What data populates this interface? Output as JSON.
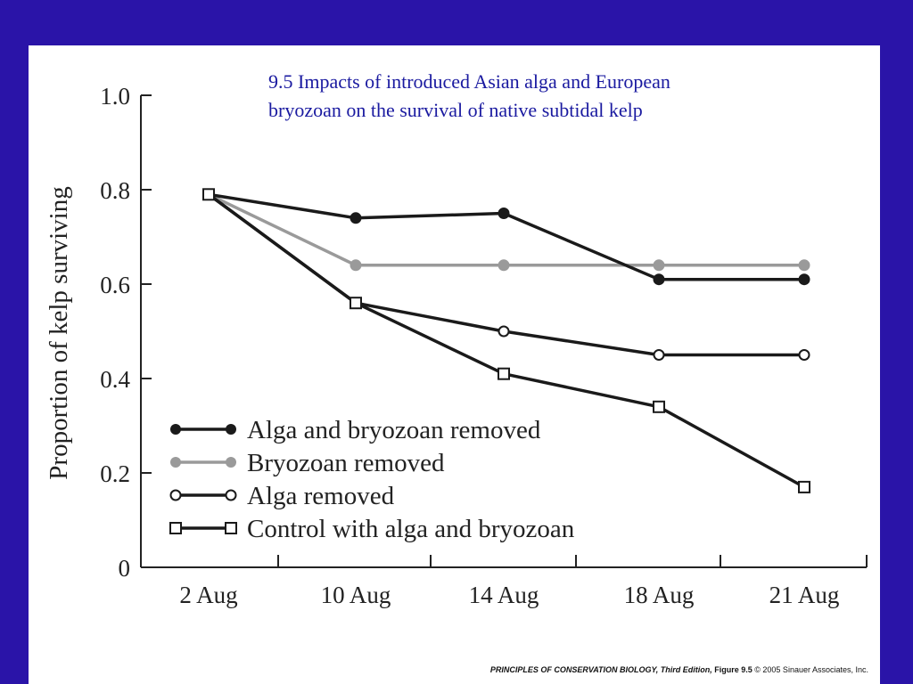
{
  "title_line1": "9.5  Impacts of introduced Asian alga and European",
  "title_line2": "bryozoan on the survival of native subtidal kelp",
  "footer": {
    "book": "PRINCIPLES OF CONSERVATION BIOLOGY, Third Edition,",
    "figure": "Figure 9.5",
    "copyright": "© 2005 Sinauer Associates, Inc."
  },
  "colors": {
    "background": "#2a14a8",
    "title": "#1a1aa0",
    "black_series": "#1a1a1a",
    "gray_series": "#9a9a9a"
  },
  "chart_data": {
    "type": "line",
    "ylabel": "Proportion of kelp surviving",
    "xlabel": "",
    "categories": [
      "2 Aug",
      "10 Aug",
      "14 Aug",
      "18 Aug",
      "21 Aug"
    ],
    "ylim": [
      0,
      1.0
    ],
    "yticks": [
      "0",
      "0.2",
      "0.4",
      "0.6",
      "0.8",
      "1.0"
    ],
    "grid": false,
    "legend_position": "bottom-left",
    "series": [
      {
        "name": "Alga and bryozoan removed",
        "x": [
          "2 Aug",
          "10 Aug",
          "14 Aug",
          "18 Aug",
          "21 Aug"
        ],
        "values": [
          0.79,
          0.74,
          0.75,
          0.61,
          0.61
        ],
        "marker": "filled-circle",
        "color": "#1a1a1a"
      },
      {
        "name": "Bryozoan removed",
        "x": [
          "2 Aug",
          "10 Aug",
          "14 Aug",
          "18 Aug",
          "21 Aug"
        ],
        "values": [
          0.79,
          0.64,
          0.64,
          0.64,
          0.64
        ],
        "marker": "filled-circle",
        "color": "#9a9a9a"
      },
      {
        "name": "Alga removed",
        "x": [
          "2 Aug",
          "10 Aug",
          "14 Aug",
          "18 Aug",
          "21 Aug"
        ],
        "values": [
          0.79,
          0.56,
          0.5,
          0.45,
          0.45
        ],
        "marker": "open-circle",
        "color": "#1a1a1a"
      },
      {
        "name": "Control with alga and bryozoan",
        "x": [
          "2 Aug",
          "10 Aug",
          "14 Aug",
          "18 Aug",
          "21 Aug"
        ],
        "values": [
          0.79,
          0.56,
          0.41,
          0.34,
          0.17
        ],
        "marker": "open-square",
        "color": "#1a1a1a"
      }
    ]
  }
}
